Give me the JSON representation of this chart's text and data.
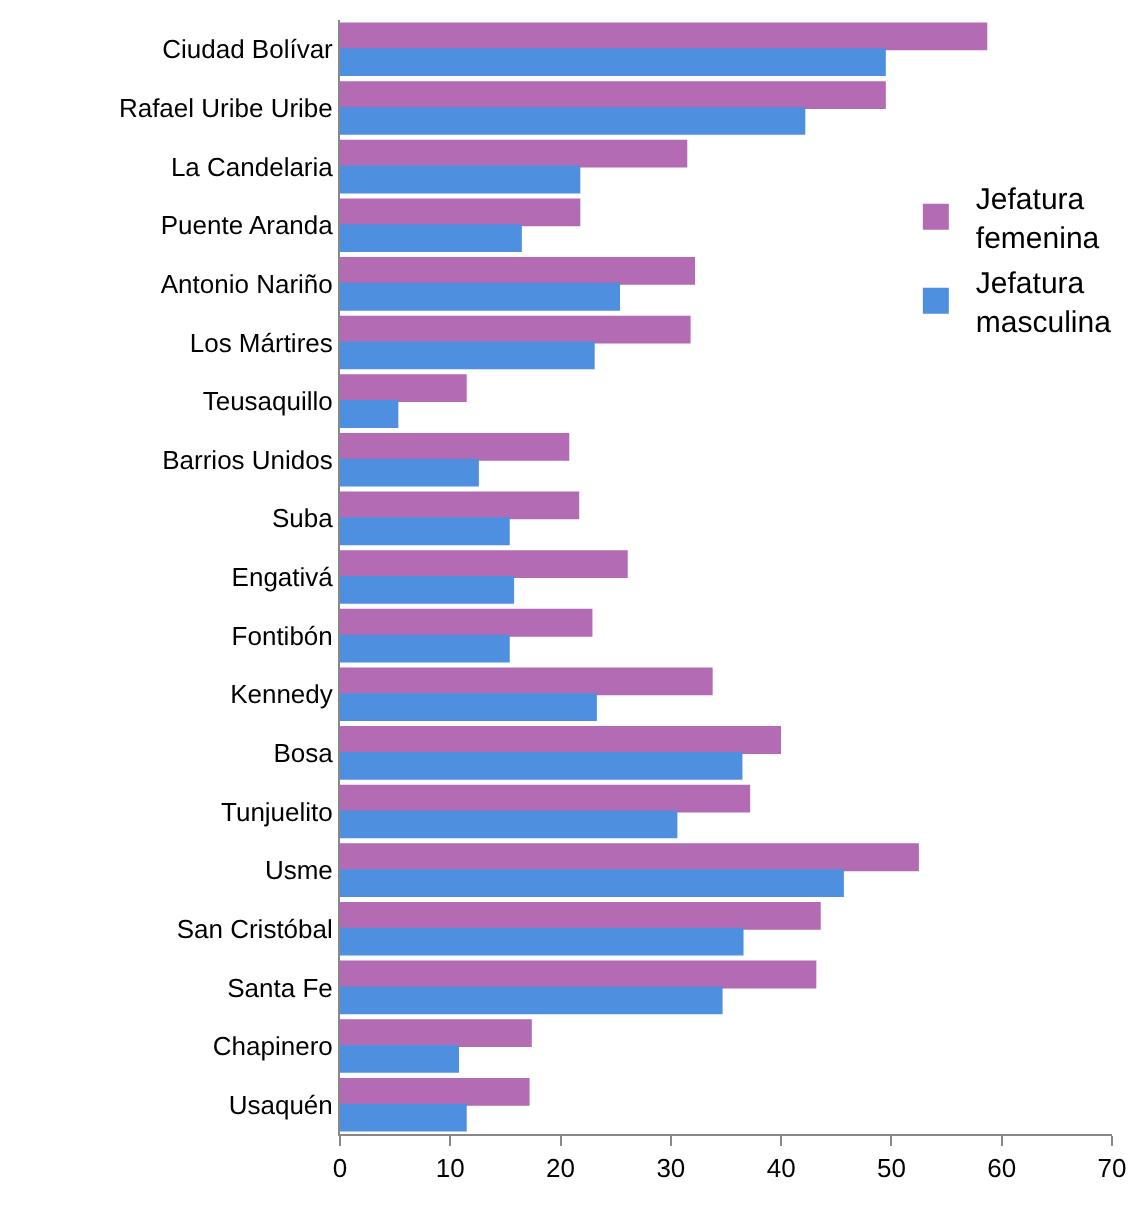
{
  "chart_data": {
    "type": "bar",
    "orientation": "horizontal",
    "categories": [
      "Ciudad Bolívar",
      "Rafael Uribe Uribe",
      "La Candelaria",
      "Puente Aranda",
      "Antonio Nariño",
      "Los Mártires",
      "Teusaquillo",
      "Barrios Unidos",
      "Suba",
      "Engativá",
      "Fontibón",
      "Kennedy",
      "Bosa",
      "Tunjuelito",
      "Usme",
      "San Cristóbal",
      "Santa Fe",
      "Chapinero",
      "Usaquén"
    ],
    "series": [
      {
        "name": "Jefatura femenina",
        "color": "#b36bb3",
        "values": [
          58.6,
          49.4,
          31.4,
          21.7,
          32.1,
          31.7,
          11.4,
          20.7,
          21.6,
          26.0,
          22.8,
          33.7,
          39.9,
          37.1,
          52.4,
          43.5,
          43.1,
          17.3,
          17.1
        ]
      },
      {
        "name": "Jefatura masculina",
        "color": "#4f8fe0",
        "values": [
          49.4,
          42.1,
          21.7,
          16.4,
          25.3,
          23.0,
          5.2,
          12.5,
          15.3,
          15.7,
          15.3,
          23.2,
          36.4,
          30.5,
          45.6,
          36.5,
          34.6,
          10.7,
          11.4
        ]
      }
    ],
    "xlim": [
      0,
      70
    ],
    "xticks": [
      0,
      10,
      20,
      30,
      40,
      50,
      60,
      70
    ],
    "legend": "right"
  }
}
